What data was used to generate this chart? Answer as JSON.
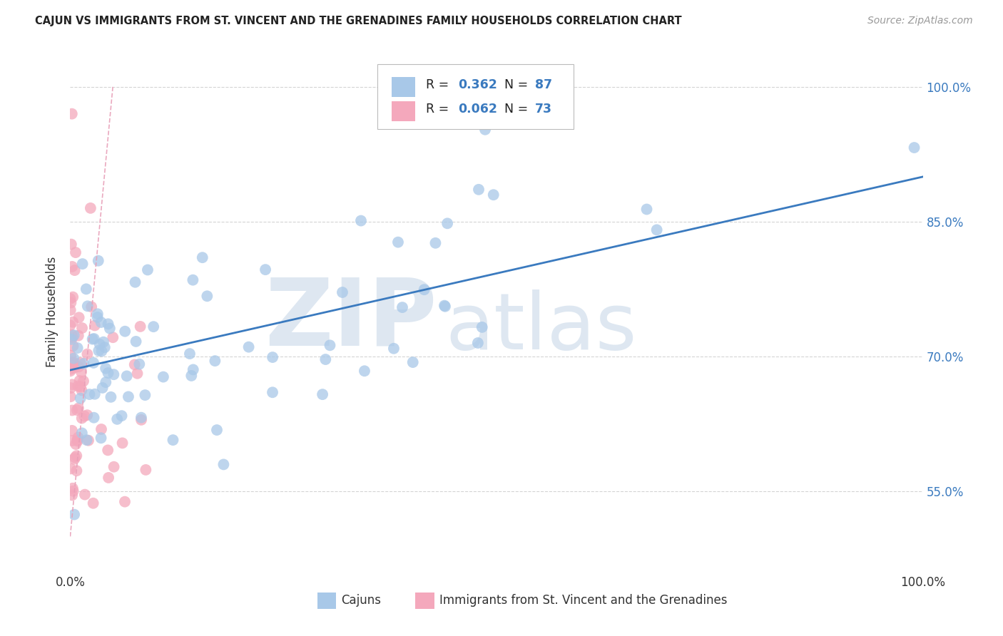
{
  "title": "CAJUN VS IMMIGRANTS FROM ST. VINCENT AND THE GRENADINES FAMILY HOUSEHOLDS CORRELATION CHART",
  "source_text": "Source: ZipAtlas.com",
  "ylabel": "Family Households",
  "watermark_zip": "ZIP",
  "watermark_atlas": "atlas",
  "xlim": [
    0,
    100
  ],
  "ylim": [
    46,
    104
  ],
  "yticks": [
    55,
    70,
    85,
    100
  ],
  "ytick_labels": [
    "55.0%",
    "70.0%",
    "85.0%",
    "100.0%"
  ],
  "legend_r1": "R = 0.362",
  "legend_n1": "N = 87",
  "legend_r2": "R = 0.062",
  "legend_n2": "N = 73",
  "blue_color": "#a8c8e8",
  "pink_color": "#f4a8bc",
  "line_blue": "#3a7abf",
  "line_pink": "#e8a0b8",
  "cajun_label": "Cajuns",
  "immigrant_label": "Immigrants from St. Vincent and the Grenadines",
  "blue_line_x0": 0,
  "blue_line_y0": 68.5,
  "blue_line_x1": 100,
  "blue_line_y1": 90,
  "pink_line_x0": 0,
  "pink_line_y0": 50,
  "pink_line_x1": 5,
  "pink_line_y1": 100,
  "grid_color": "#d0d0d0",
  "bg_color": "#ffffff",
  "text_color": "#333333",
  "blue_label_color": "#3a7abf",
  "source_color": "#999999",
  "title_color": "#222222"
}
